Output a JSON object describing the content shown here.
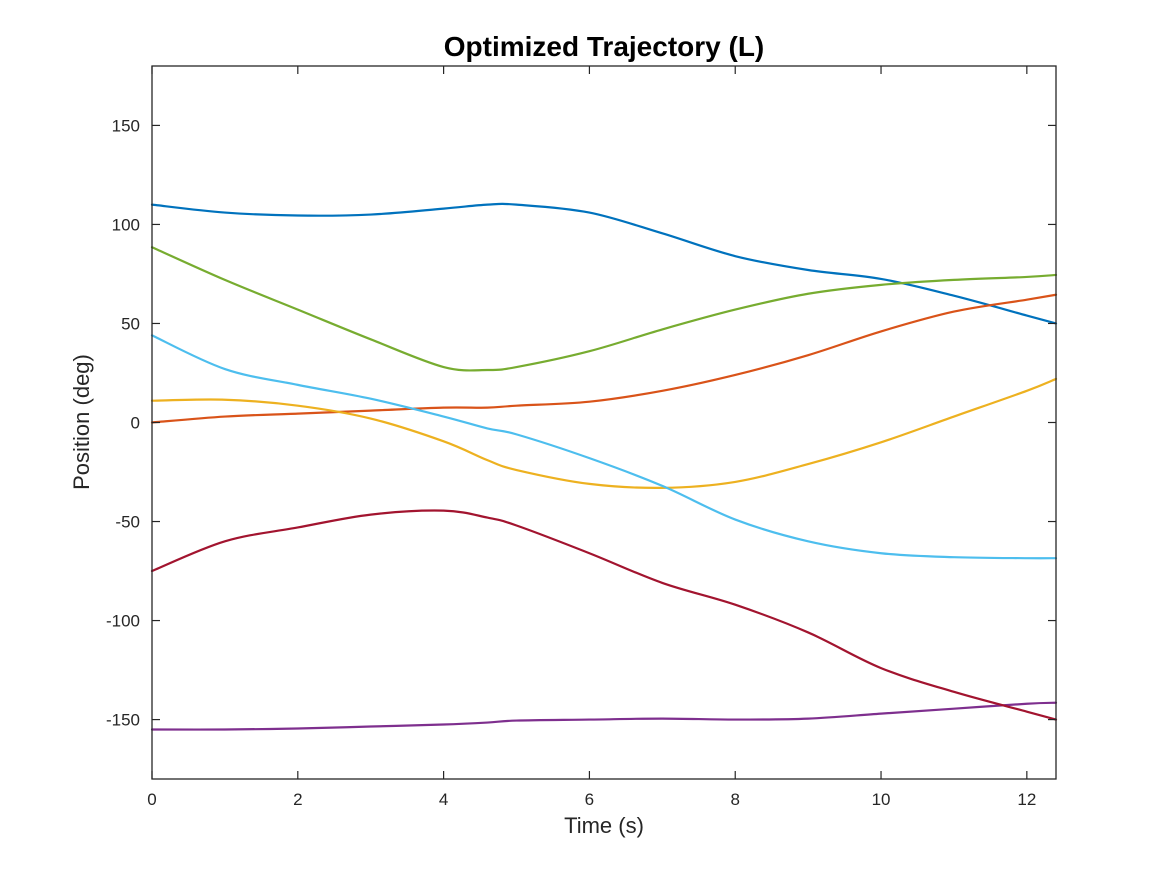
{
  "chart_data": {
    "type": "line",
    "title": "Optimized Trajectory (L)",
    "xlabel": "Time (s)",
    "ylabel": "Position (deg)",
    "xlim": [
      0,
      12.4
    ],
    "ylim": [
      -180,
      180
    ],
    "xticks": [
      0,
      2,
      4,
      6,
      8,
      10,
      12
    ],
    "yticks": [
      -150,
      -100,
      -50,
      0,
      50,
      100,
      150
    ],
    "grid": false,
    "legend": "none",
    "x": [
      0,
      1,
      2,
      3,
      4,
      4.6,
      5,
      6,
      7,
      8,
      9,
      10,
      11,
      12,
      12.4
    ],
    "series": [
      {
        "color": "#0072BD",
        "values": [
          110,
          106,
          104.5,
          105,
          108,
          110,
          110,
          106,
          95.5,
          84,
          77,
          72.5,
          64,
          54,
          50
        ]
      },
      {
        "color": "#D95319",
        "values": [
          0,
          3,
          4.5,
          6,
          7.5,
          7.5,
          8.5,
          10.5,
          16,
          24,
          34,
          46,
          56,
          62,
          64.5
        ]
      },
      {
        "color": "#EDB120",
        "values": [
          11,
          11.5,
          8.5,
          2,
          -9.5,
          -19,
          -24,
          -31,
          -33,
          -30,
          -21,
          -10,
          3,
          16,
          22
        ]
      },
      {
        "color": "#7E2F8E",
        "values": [
          -155,
          -155,
          -154.5,
          -153.5,
          -152.5,
          -151.5,
          -150.5,
          -150,
          -149.5,
          -150,
          -149.5,
          -147,
          -144.5,
          -142,
          -141.5
        ]
      },
      {
        "color": "#77AC30",
        "values": [
          88.5,
          72,
          57,
          42,
          28,
          26.5,
          28,
          36,
          47,
          57,
          65,
          69.5,
          72,
          73.5,
          74.5
        ]
      },
      {
        "color": "#4DBEEE",
        "values": [
          44,
          27,
          19,
          12,
          3,
          -3,
          -6,
          -18,
          -32,
          -49,
          -60,
          -66,
          -68,
          -68.5,
          -68.5
        ]
      },
      {
        "color": "#A2142F",
        "values": [
          -75,
          -60,
          -53,
          -46.5,
          -44.5,
          -48,
          -52,
          -66,
          -81,
          -92,
          -106,
          -124,
          -136,
          -146,
          -150
        ]
      }
    ]
  }
}
